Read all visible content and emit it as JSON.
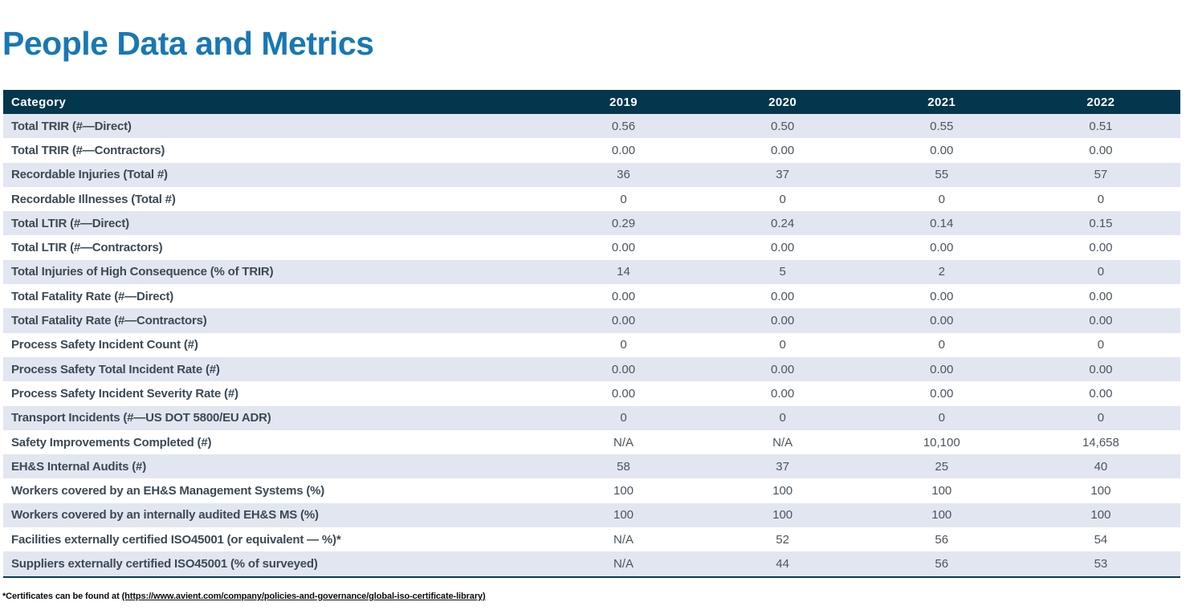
{
  "page": {
    "title": "People Data and Metrics",
    "footnote_prefix": "*Certificates can be found at ",
    "footnote_link": "(https://www.avient.com/company/policies-and-governance/global-iso-certificate-library)"
  },
  "colors": {
    "title_blue": "#1878B4",
    "header_bg": "#04374E",
    "row_alt_bg": "#E2E6F0",
    "category_text": "#3B4A55",
    "value_text": "#4A5560",
    "bottom_border": "#0C3B52"
  },
  "table": {
    "columns": [
      "Category",
      "2019",
      "2020",
      "2021",
      "2022"
    ],
    "rows": [
      {
        "label": "Total TRIR (#—Direct)",
        "values": [
          "0.56",
          "0.50",
          "0.55",
          "0.51"
        ]
      },
      {
        "label": "Total TRIR (#—Contractors)",
        "values": [
          "0.00",
          "0.00",
          "0.00",
          "0.00"
        ]
      },
      {
        "label": "Recordable Injuries (Total #)",
        "values": [
          "36",
          "37",
          "55",
          "57"
        ]
      },
      {
        "label": "Recordable Illnesses (Total #)",
        "values": [
          "0",
          "0",
          "0",
          "0"
        ]
      },
      {
        "label": "Total LTIR (#—Direct)",
        "values": [
          "0.29",
          "0.24",
          "0.14",
          "0.15"
        ]
      },
      {
        "label": "Total LTIR (#—Contractors)",
        "values": [
          "0.00",
          "0.00",
          "0.00",
          "0.00"
        ]
      },
      {
        "label": "Total Injuries of High Consequence (% of TRIR)",
        "values": [
          "14",
          "5",
          "2",
          "0"
        ]
      },
      {
        "label": "Total Fatality Rate (#—Direct)",
        "values": [
          "0.00",
          "0.00",
          "0.00",
          "0.00"
        ]
      },
      {
        "label": "Total Fatality Rate (#—Contractors)",
        "values": [
          "0.00",
          "0.00",
          "0.00",
          "0.00"
        ]
      },
      {
        "label": "Process Safety Incident Count (#)",
        "values": [
          "0",
          "0",
          "0",
          "0"
        ]
      },
      {
        "label": "Process Safety Total Incident Rate (#)",
        "values": [
          "0.00",
          "0.00",
          "0.00",
          "0.00"
        ]
      },
      {
        "label": "Process Safety Incident Severity Rate (#)",
        "values": [
          "0.00",
          "0.00",
          "0.00",
          "0.00"
        ]
      },
      {
        "label": "Transport Incidents (#—US DOT 5800/EU ADR)",
        "values": [
          "0",
          "0",
          "0",
          "0"
        ]
      },
      {
        "label": "Safety Improvements Completed (#)",
        "values": [
          "N/A",
          "N/A",
          "10,100",
          "14,658"
        ]
      },
      {
        "label": "EH&S Internal Audits (#)",
        "values": [
          "58",
          "37",
          "25",
          "40"
        ]
      },
      {
        "label": "Workers covered by an EH&S Management Systems (%)",
        "values": [
          "100",
          "100",
          "100",
          "100"
        ]
      },
      {
        "label": "Workers covered by an internally audited EH&S MS (%)",
        "values": [
          "100",
          "100",
          "100",
          "100"
        ]
      },
      {
        "label": "Facilities externally certified ISO45001 (or equivalent — %)*",
        "values": [
          "N/A",
          "52",
          "56",
          "54"
        ]
      },
      {
        "label": "Suppliers externally certified ISO45001 (% of surveyed)",
        "values": [
          "N/A",
          "44",
          "56",
          "53"
        ]
      }
    ]
  }
}
